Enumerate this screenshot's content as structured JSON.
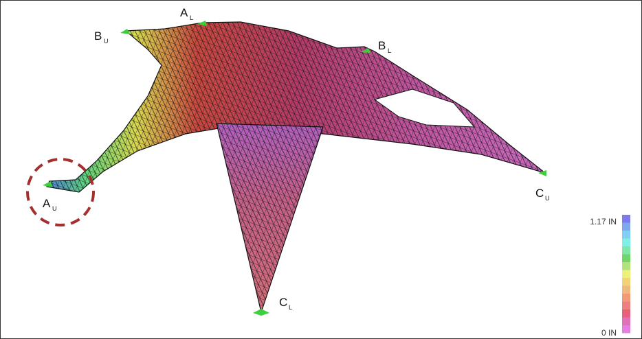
{
  "supports": [
    {
      "letter": "B",
      "sub": "U"
    },
    {
      "letter": "A",
      "sub": "L"
    },
    {
      "letter": "B",
      "sub": "L"
    },
    {
      "letter": "A",
      "sub": "U"
    },
    {
      "letter": "C",
      "sub": "U"
    },
    {
      "letter": "C",
      "sub": "L"
    }
  ],
  "legend": {
    "max_label": "1.17 IN",
    "min_label": "0 IN"
  }
}
